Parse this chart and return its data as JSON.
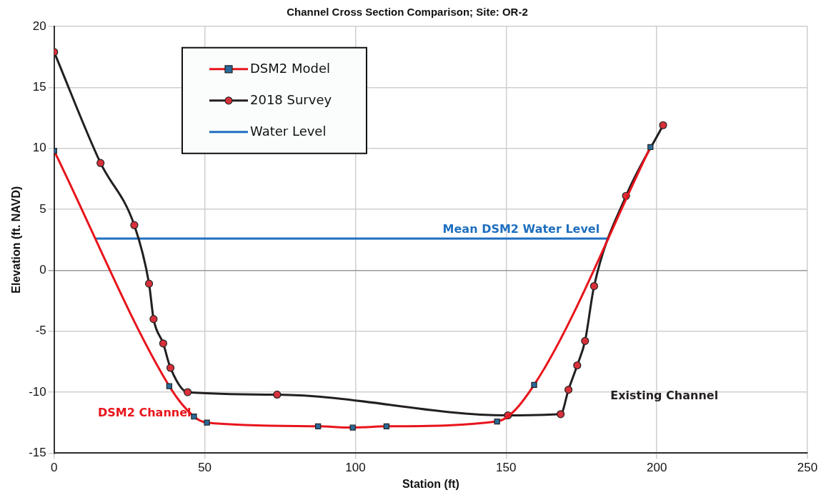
{
  "chart_data": {
    "type": "line",
    "title": "Channel Cross Section Comparison; Site: OR-2",
    "xlabel": "Station (ft)",
    "ylabel": "Elevation (ft. NAVD)",
    "xlim": [
      0,
      250
    ],
    "xticks": [
      0,
      50,
      100,
      150,
      200,
      250
    ],
    "ylim": [
      -15,
      20
    ],
    "yticks": [
      -15,
      -10,
      -5,
      0,
      5,
      10,
      15,
      20
    ],
    "grid": true,
    "legend": "top left",
    "line_style": "solid",
    "series": [
      {
        "name": "DSM2 Model",
        "color": "#e8141c",
        "marker": "square",
        "x": [
          0,
          38.2,
          46.4,
          50.7,
          87.6,
          99.1,
          110.3,
          147,
          159.3,
          197.9
        ],
        "values": [
          9.8,
          -9.5,
          -12,
          -12.5,
          -12.8,
          -12.9,
          -12.8,
          -12.4,
          -9.4,
          10.1
        ]
      },
      {
        "name": "2018 Survey",
        "color": "#231f20",
        "marker": "circle",
        "x": [
          0,
          15.4,
          26.6,
          31.5,
          33,
          36.2,
          38.6,
          44.3,
          74,
          150.6,
          168.1,
          170.7,
          173.6,
          176.2,
          179.2,
          189.8,
          202.1
        ],
        "values": [
          17.9,
          8.8,
          3.7,
          -1.1,
          -4,
          -6,
          -8,
          -10,
          -10.2,
          -11.9,
          -11.8,
          -9.8,
          -7.8,
          -5.8,
          -1.3,
          6.1,
          11.9
        ]
      },
      {
        "name": "Water Level",
        "color": "#1f6fc0",
        "marker": "none",
        "x": [
          14,
          184
        ],
        "values": [
          2.6,
          2.6
        ]
      }
    ],
    "annotations": [
      {
        "text": "Mean DSM2 Water Level",
        "x": 155,
        "y": 2.6
      },
      "DSM2 Channel",
      "Existing Channel"
    ]
  }
}
